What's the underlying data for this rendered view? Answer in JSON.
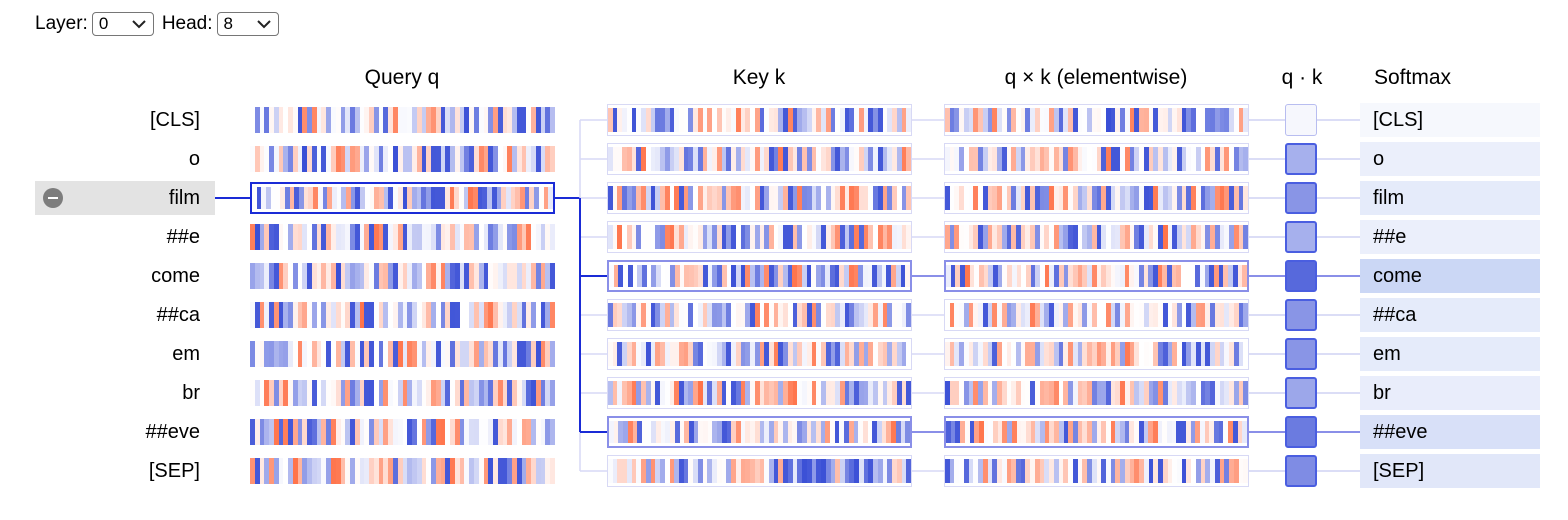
{
  "controls": {
    "layer_label": "Layer:",
    "layer_value": "0",
    "head_label": "Head:",
    "head_value": "8"
  },
  "headers": {
    "query": "Query q",
    "key": "Key k",
    "elementwise": "q × k (elementwise)",
    "dot": "q · k",
    "softmax": "Softmax"
  },
  "tokens": [
    "[CLS]",
    "o",
    "film",
    "##e",
    "come",
    "##ca",
    "em",
    "br",
    "##eve",
    "[SEP]"
  ],
  "selected_token_index": 2,
  "dot_product_levels": [
    0.05,
    0.45,
    0.6,
    0.45,
    0.85,
    0.6,
    0.6,
    0.5,
    0.75,
    0.65
  ],
  "softmax_levels": [
    0.05,
    0.18,
    0.25,
    0.18,
    0.55,
    0.25,
    0.25,
    0.2,
    0.4,
    0.3
  ],
  "colors": {
    "positive": "#e8734a",
    "negative": "#3a4fd6",
    "selection": "#1a2bd6",
    "highlight": "#8a8fe8"
  }
}
